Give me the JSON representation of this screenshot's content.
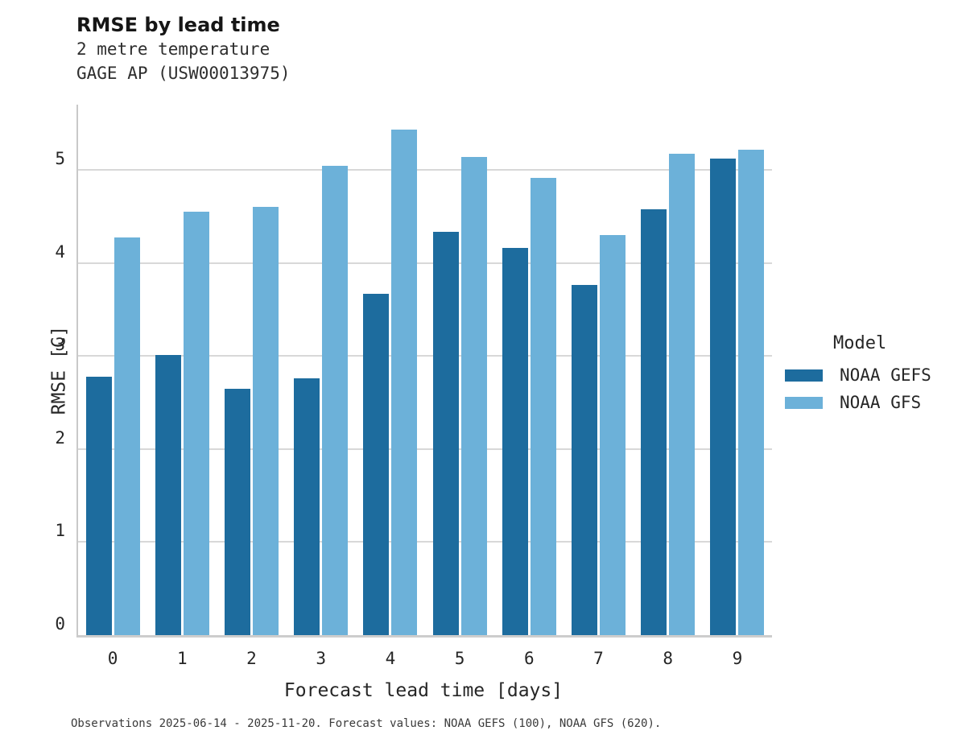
{
  "header": {
    "title": "RMSE by lead time",
    "subtitle_line1": "2 metre temperature",
    "subtitle_line2": "GAGE AP (USW00013975)"
  },
  "footer": {
    "text": "Observations 2025-06-14 - 2025-11-20. Forecast values: NOAA GEFS (100), NOAA GFS (620)."
  },
  "legend": {
    "title": "Model",
    "entries": [
      {
        "label": "NOAA GEFS",
        "color": "#1d6c9e"
      },
      {
        "label": "NOAA GFS",
        "color": "#6cb1d9"
      }
    ]
  },
  "colors": {
    "gefs_bar": "#1d6c9e",
    "gfs_bar": "#6cb1d9",
    "gridline": "#d8d8d8",
    "spine": "#c9c9c9",
    "text": "#262626"
  },
  "chart_data": {
    "type": "bar",
    "title": "RMSE by lead time",
    "subtitle": [
      "2 metre temperature",
      "GAGE AP (USW00013975)"
    ],
    "xlabel": "Forecast lead time [days]",
    "ylabel": "RMSE [C]",
    "categories": [
      "0",
      "1",
      "2",
      "3",
      "4",
      "5",
      "6",
      "7",
      "8",
      "9"
    ],
    "series": [
      {
        "name": "NOAA GEFS",
        "color": "#1d6c9e",
        "values": [
          2.78,
          3.01,
          2.65,
          2.76,
          3.67,
          4.33,
          4.16,
          3.76,
          4.58,
          5.12
        ]
      },
      {
        "name": "NOAA GFS",
        "color": "#6cb1d9",
        "values": [
          4.27,
          4.55,
          4.6,
          5.04,
          5.43,
          5.14,
          4.91,
          4.3,
          5.17,
          5.22
        ]
      }
    ],
    "ylim": [
      0,
      5.7
    ],
    "yticks": [
      0,
      1,
      2,
      3,
      4,
      5
    ],
    "grid": "horizontal",
    "legend_position": "right",
    "legend_title": "Model"
  }
}
